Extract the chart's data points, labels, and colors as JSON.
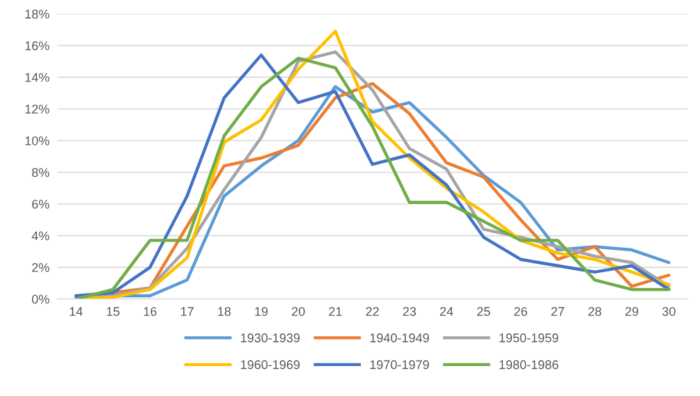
{
  "chart_data": {
    "type": "line",
    "categories": [
      "14",
      "15",
      "16",
      "17",
      "18",
      "19",
      "20",
      "21",
      "22",
      "23",
      "24",
      "25",
      "26",
      "27",
      "28",
      "29",
      "30"
    ],
    "series": [
      {
        "name": "1930-1939",
        "color": "#5b9bd5",
        "values": [
          0.1,
          0.2,
          0.2,
          1.2,
          6.5,
          8.4,
          10.0,
          13.4,
          11.8,
          12.4,
          10.2,
          7.8,
          6.1,
          3.1,
          3.3,
          3.1,
          2.3
        ]
      },
      {
        "name": "1940-1949",
        "color": "#ed7d31",
        "values": [
          0.0,
          0.4,
          0.7,
          4.6,
          8.4,
          8.9,
          9.7,
          12.7,
          13.6,
          11.7,
          8.6,
          7.7,
          5.0,
          2.5,
          3.3,
          0.8,
          1.5
        ]
      },
      {
        "name": "1950-1959",
        "color": "#a5a5a5",
        "values": [
          0.0,
          0.2,
          0.7,
          3.2,
          6.9,
          10.2,
          15.0,
          15.6,
          13.2,
          9.5,
          8.2,
          4.4,
          3.9,
          3.3,
          2.7,
          2.3,
          0.8
        ]
      },
      {
        "name": "1960-1969",
        "color": "#ffc000",
        "values": [
          0.0,
          0.1,
          0.6,
          2.6,
          9.9,
          11.3,
          14.5,
          16.9,
          11.2,
          8.9,
          7.0,
          5.5,
          3.7,
          2.9,
          2.5,
          1.7,
          0.9
        ]
      },
      {
        "name": "1970-1979",
        "color": "#4472c4",
        "values": [
          0.2,
          0.4,
          2.0,
          6.5,
          12.7,
          15.4,
          12.4,
          13.1,
          8.5,
          9.1,
          7.2,
          3.9,
          2.5,
          2.1,
          1.7,
          2.1,
          0.6
        ]
      },
      {
        "name": "1980-1986",
        "color": "#70ad47",
        "values": [
          0.0,
          0.6,
          3.7,
          3.7,
          10.3,
          13.4,
          15.2,
          14.6,
          10.9,
          6.1,
          6.1,
          4.9,
          3.7,
          3.7,
          1.2,
          0.6,
          0.6
        ]
      }
    ],
    "ylim": [
      0,
      18
    ],
    "yticks": [
      {
        "value": 0,
        "label": "0%"
      },
      {
        "value": 2,
        "label": "2%"
      },
      {
        "value": 4,
        "label": "4%"
      },
      {
        "value": 6,
        "label": "6%"
      },
      {
        "value": 8,
        "label": "8%"
      },
      {
        "value": 10,
        "label": "10%"
      },
      {
        "value": 12,
        "label": "12%"
      },
      {
        "value": 14,
        "label": "14%"
      },
      {
        "value": 16,
        "label": "16%"
      },
      {
        "value": 18,
        "label": "18%"
      }
    ],
    "grid": "y",
    "legend": "bottom",
    "line_style": "solid",
    "marker": "none"
  }
}
